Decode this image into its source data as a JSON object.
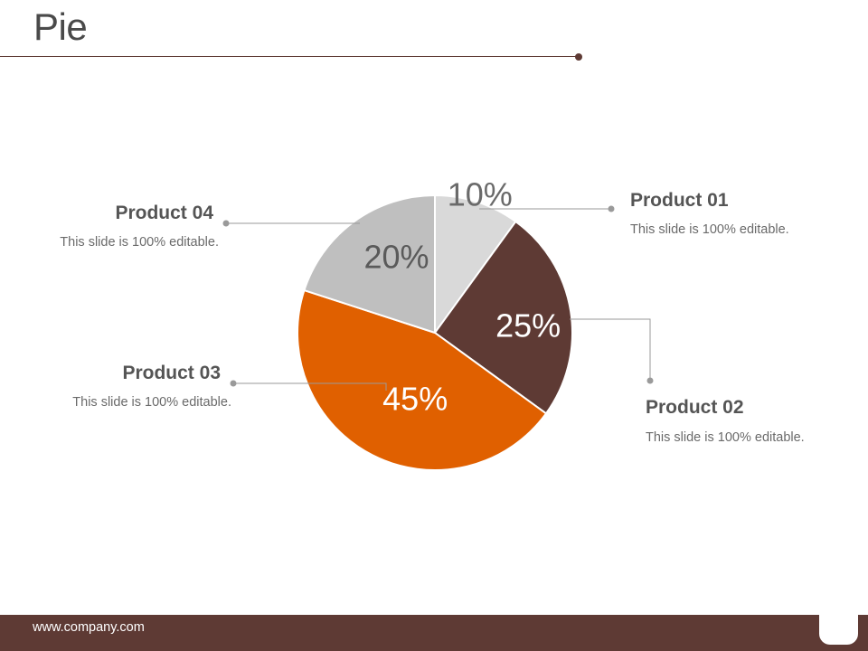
{
  "title": "Pie",
  "footer": {
    "url": "www.company.com"
  },
  "colors": {
    "accent": "#5e3a34",
    "product01": "#d9d9d9",
    "product02": "#5e3a34",
    "product03": "#e06000",
    "product04": "#bfbfbf"
  },
  "products": [
    {
      "name": "Product 01",
      "desc": "This slide is 100% editable."
    },
    {
      "name": "Product 02",
      "desc": "This slide is 100% editable."
    },
    {
      "name": "Product 03",
      "desc": "This slide is 100% editable."
    },
    {
      "name": "Product 04",
      "desc": "This slide is 100% editable."
    }
  ],
  "chart_data": {
    "type": "pie",
    "categories": [
      "Product 01",
      "Product 02",
      "Product 03",
      "Product 04"
    ],
    "values": [
      10,
      25,
      45,
      20
    ],
    "labels": [
      "10%",
      "25%",
      "45%",
      "20%"
    ],
    "colors": [
      "#d9d9d9",
      "#5e3a34",
      "#e06000",
      "#bfbfbf"
    ],
    "label_colors": [
      "#6a6a6a",
      "#ffffff",
      "#ffffff",
      "#5a5a5a"
    ],
    "start": "12 o'clock",
    "direction": "clockwise",
    "legend": "none"
  }
}
